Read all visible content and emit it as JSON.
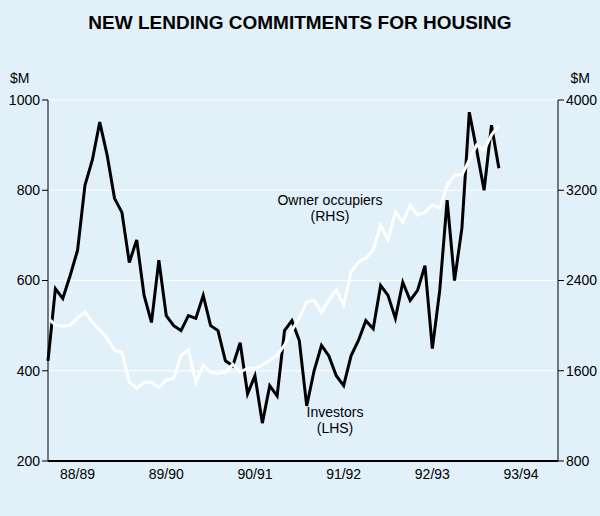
{
  "chart_data": {
    "type": "line",
    "title": "NEW LENDING COMMITMENTS FOR HOUSING",
    "y_label": "$M",
    "y2_label": "$M",
    "categories": [
      null,
      null,
      null,
      null,
      "88/89",
      null,
      null,
      null,
      null,
      null,
      null,
      null,
      null,
      null,
      null,
      null,
      "89/90",
      null,
      null,
      null,
      null,
      null,
      null,
      null,
      null,
      null,
      null,
      null,
      "90/91",
      null,
      null,
      null,
      null,
      null,
      null,
      null,
      null,
      null,
      null,
      null,
      "91/92",
      null,
      null,
      null,
      null,
      null,
      null,
      null,
      null,
      null,
      null,
      null,
      "92/93",
      null,
      null,
      null,
      null,
      null,
      null,
      null,
      null,
      null,
      null,
      null,
      "93/94",
      null,
      null,
      null,
      null,
      null
    ],
    "series": [
      {
        "name": "Investors (LHS)",
        "color": "#000000",
        "values": [
          422,
          582,
          560,
          611,
          667,
          811,
          867,
          951,
          878,
          782,
          751,
          640,
          690,
          567,
          507,
          645,
          522,
          500,
          489,
          522,
          516,
          567,
          500,
          489,
          422,
          411,
          462,
          349,
          389,
          284,
          367,
          344,
          489,
          511,
          467,
          322,
          400,
          456,
          433,
          389,
          367,
          433,
          467,
          511,
          493,
          589,
          567,
          516,
          596,
          556,
          578,
          633,
          449,
          578,
          778,
          600,
          716,
          973,
          889,
          800,
          944,
          849,
          null,
          null,
          null,
          null,
          null,
          null,
          null,
          null
        ]
      },
      {
        "name": "Owner occupiers (RHS)",
        "color": "#ffffff",
        "axis": "y2",
        "values": [
          2067,
          2004,
          1995,
          2004,
          2067,
          2120,
          2031,
          1960,
          1889,
          1782,
          1764,
          1498,
          1445,
          1498,
          1498,
          1454,
          1516,
          1534,
          1738,
          1782,
          1498,
          1649,
          1587,
          1578,
          1587,
          1658,
          1587,
          1622,
          1622,
          1649,
          1693,
          1738,
          1826,
          1960,
          2067,
          2208,
          2226,
          2120,
          2226,
          2315,
          2182,
          2474,
          2563,
          2598,
          2670,
          2891,
          2758,
          3006,
          2918,
          3069,
          2980,
          3006,
          3069,
          3042,
          3246,
          3335,
          3335,
          3468,
          3601,
          3557,
          3690,
          3778,
          null,
          null,
          null,
          null,
          null,
          null,
          null,
          null
        ]
      }
    ],
    "ylim": [
      200,
      1000
    ],
    "yticks": [
      200,
      400,
      600,
      800,
      1000
    ],
    "y2lim": [
      800,
      4000
    ],
    "y2ticks": [
      800,
      1600,
      2400,
      3200,
      4000
    ],
    "grid": true
  }
}
